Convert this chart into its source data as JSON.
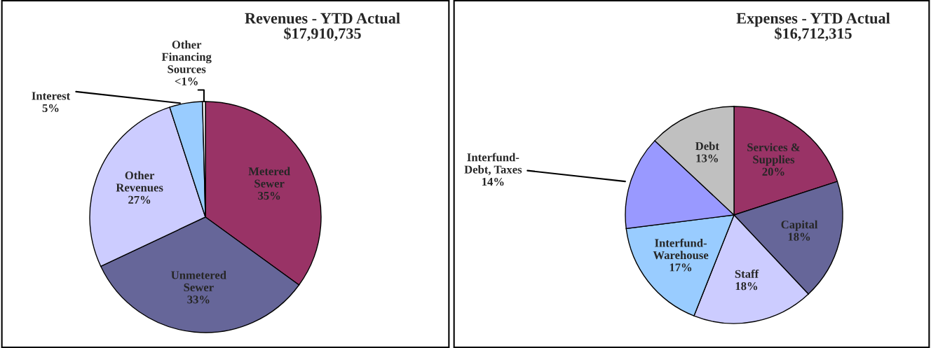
{
  "chart_data": [
    {
      "type": "pie",
      "title": "Revenues - YTD Actual",
      "subtitle": "$17,910,735",
      "categories": [
        "Metered\nSewer",
        "Unmetered\nSewer",
        "Other\nRevenues",
        "Interest",
        "Other\nFinancing\nSources"
      ],
      "values": [
        35,
        33,
        27,
        4.6,
        0.4
      ],
      "value_labels": [
        "35%",
        "33%",
        "27%",
        "5%",
        "<1%"
      ],
      "colors": [
        "#993366",
        "#666699",
        "#ccccff",
        "#99ccff",
        "#ffffff"
      ]
    },
    {
      "type": "pie",
      "title": "Expenses - YTD Actual",
      "subtitle": "$16,712,315",
      "categories": [
        "Services &\nSupplies",
        "Capital",
        "Staff",
        "Interfund-\nWarehouse",
        "Interfund-\nDebt, Taxes",
        "Debt"
      ],
      "values": [
        20,
        18,
        18,
        17,
        14,
        13
      ],
      "value_labels": [
        "20%",
        "18%",
        "18%",
        "17%",
        "14%",
        "13%"
      ],
      "colors": [
        "#993366",
        "#666699",
        "#ccccff",
        "#99ccff",
        "#9999ff",
        "#c0c0c0"
      ]
    }
  ]
}
